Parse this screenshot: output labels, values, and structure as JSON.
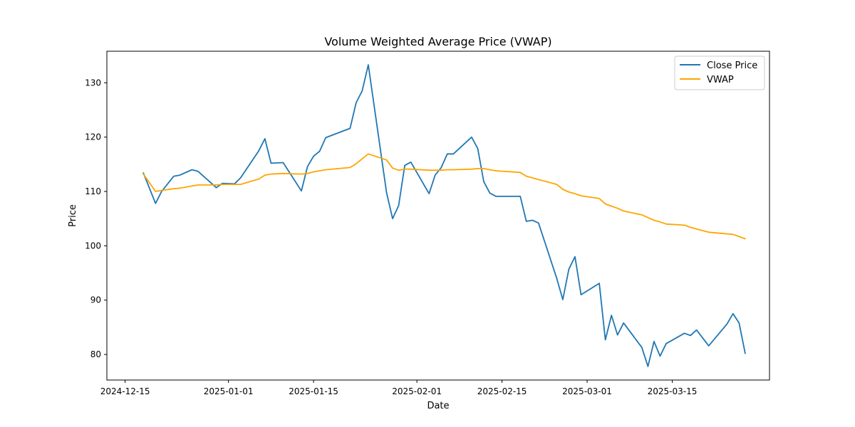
{
  "chart_data": {
    "type": "line",
    "title": "Volume Weighted Average Price (VWAP)",
    "xlabel": "Date",
    "ylabel": "Price",
    "xlim": [
      "2024-12-12",
      "2025-03-31"
    ],
    "ylim": [
      75.3,
      135.8
    ],
    "x_ticks": [
      {
        "date": "2024-12-15",
        "label": "2024-12-15"
      },
      {
        "date": "2025-01-01",
        "label": "2025-01-01"
      },
      {
        "date": "2025-01-15",
        "label": "2025-01-15"
      },
      {
        "date": "2025-02-01",
        "label": "2025-02-01"
      },
      {
        "date": "2025-02-15",
        "label": "2025-02-15"
      },
      {
        "date": "2025-03-01",
        "label": "2025-03-01"
      },
      {
        "date": "2025-03-15",
        "label": "2025-03-15"
      }
    ],
    "y_ticks": [
      80,
      90,
      100,
      110,
      120,
      130
    ],
    "grid": false,
    "legend": "top-right",
    "x": [
      "2024-12-18",
      "2024-12-20",
      "2024-12-21",
      "2024-12-23",
      "2024-12-24",
      "2024-12-26",
      "2024-12-27",
      "2024-12-30",
      "2024-12-31",
      "2025-01-02",
      "2025-01-03",
      "2025-01-06",
      "2025-01-07",
      "2025-01-08",
      "2025-01-10",
      "2025-01-13",
      "2025-01-14",
      "2025-01-15",
      "2025-01-16",
      "2025-01-17",
      "2025-01-21",
      "2025-01-22",
      "2025-01-23",
      "2025-01-24",
      "2025-01-27",
      "2025-01-28",
      "2025-01-29",
      "2025-01-30",
      "2025-01-31",
      "2025-02-03",
      "2025-02-04",
      "2025-02-05",
      "2025-02-06",
      "2025-02-07",
      "2025-02-10",
      "2025-02-11",
      "2025-02-12",
      "2025-02-13",
      "2025-02-14",
      "2025-02-18",
      "2025-02-19",
      "2025-02-20",
      "2025-02-21",
      "2025-02-24",
      "2025-02-25",
      "2025-02-26",
      "2025-02-27",
      "2025-02-28",
      "2025-03-03",
      "2025-03-04",
      "2025-03-05",
      "2025-03-06",
      "2025-03-07",
      "2025-03-10",
      "2025-03-11",
      "2025-03-12",
      "2025-03-13",
      "2025-03-14",
      "2025-03-17",
      "2025-03-18",
      "2025-03-19",
      "2025-03-21",
      "2025-03-24",
      "2025-03-25",
      "2025-03-26",
      "2025-03-27"
    ],
    "series": [
      {
        "name": "Close Price",
        "color": "#1f77b4",
        "values": [
          113.4,
          107.8,
          110.0,
          112.8,
          113.0,
          114.0,
          113.7,
          110.7,
          111.5,
          111.4,
          112.5,
          117.5,
          119.7,
          115.2,
          115.3,
          110.1,
          114.6,
          116.5,
          117.4,
          119.9,
          121.6,
          126.3,
          128.5,
          133.3,
          109.8,
          105.0,
          107.4,
          114.8,
          115.4,
          109.6,
          113.0,
          114.4,
          116.9,
          116.9,
          120.0,
          117.9,
          111.8,
          109.7,
          109.1,
          109.1,
          104.5,
          104.7,
          104.2,
          94.0,
          90.1,
          95.7,
          98.0,
          91.0,
          93.1,
          82.7,
          87.2,
          83.6,
          85.8,
          81.3,
          77.8,
          82.4,
          79.7,
          82.0,
          83.9,
          83.5,
          84.5,
          81.6,
          85.6,
          87.5,
          85.8,
          80.2
        ]
      },
      {
        "name": "VWAP",
        "color": "#ffa500",
        "values": [
          113.2,
          110.0,
          110.2,
          110.5,
          110.6,
          111.0,
          111.2,
          111.2,
          111.3,
          111.3,
          111.3,
          112.3,
          113.0,
          113.2,
          113.3,
          113.2,
          113.3,
          113.6,
          113.8,
          114.0,
          114.4,
          115.1,
          116.0,
          116.9,
          115.8,
          114.3,
          113.9,
          114.1,
          114.1,
          113.9,
          113.9,
          113.9,
          114.0,
          114.0,
          114.1,
          114.2,
          114.2,
          114.0,
          113.8,
          113.5,
          112.8,
          112.5,
          112.2,
          111.3,
          110.4,
          109.9,
          109.6,
          109.2,
          108.7,
          107.7,
          107.3,
          106.9,
          106.4,
          105.7,
          105.2,
          104.7,
          104.4,
          104.0,
          103.8,
          103.4,
          103.1,
          102.5,
          102.2,
          102.1,
          101.7,
          101.3
        ]
      }
    ]
  }
}
